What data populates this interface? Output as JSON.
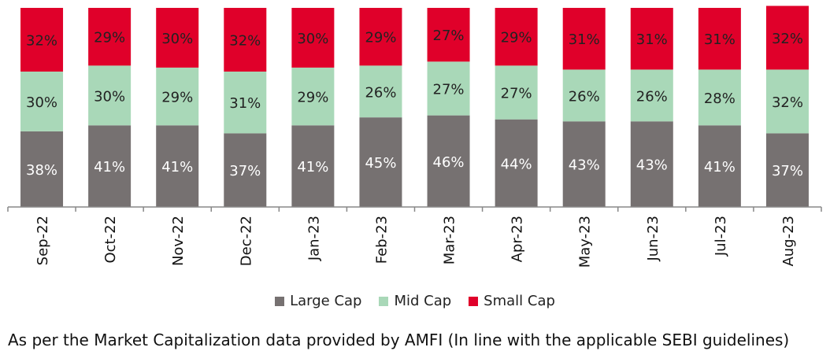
{
  "chart_data": {
    "type": "bar",
    "stacked": true,
    "categories": [
      "Sep-22",
      "Oct-22",
      "Nov-22",
      "Dec-22",
      "Jan-23",
      "Feb-23",
      "Mar-23",
      "Apr-23",
      "May-23",
      "Jun-23",
      "Jul-23",
      "Aug-23"
    ],
    "series": [
      {
        "name": "Large Cap",
        "color": "#767171",
        "values": [
          38,
          41,
          41,
          37,
          41,
          45,
          46,
          44,
          43,
          43,
          41,
          37
        ]
      },
      {
        "name": "Mid Cap",
        "color": "#a9d8b8",
        "values": [
          30,
          30,
          29,
          31,
          29,
          26,
          27,
          27,
          26,
          26,
          28,
          32
        ]
      },
      {
        "name": "Small Cap",
        "color": "#e0002a",
        "values": [
          32,
          29,
          30,
          32,
          30,
          29,
          27,
          29,
          31,
          31,
          31,
          32
        ]
      }
    ],
    "value_suffix": "%",
    "legend_position": "bottom",
    "grid": false,
    "ylim": [
      0,
      100
    ]
  },
  "footnote": "As per the Market Capitalization data provided by AMFI (In line with the applicable SEBI guidelines)"
}
